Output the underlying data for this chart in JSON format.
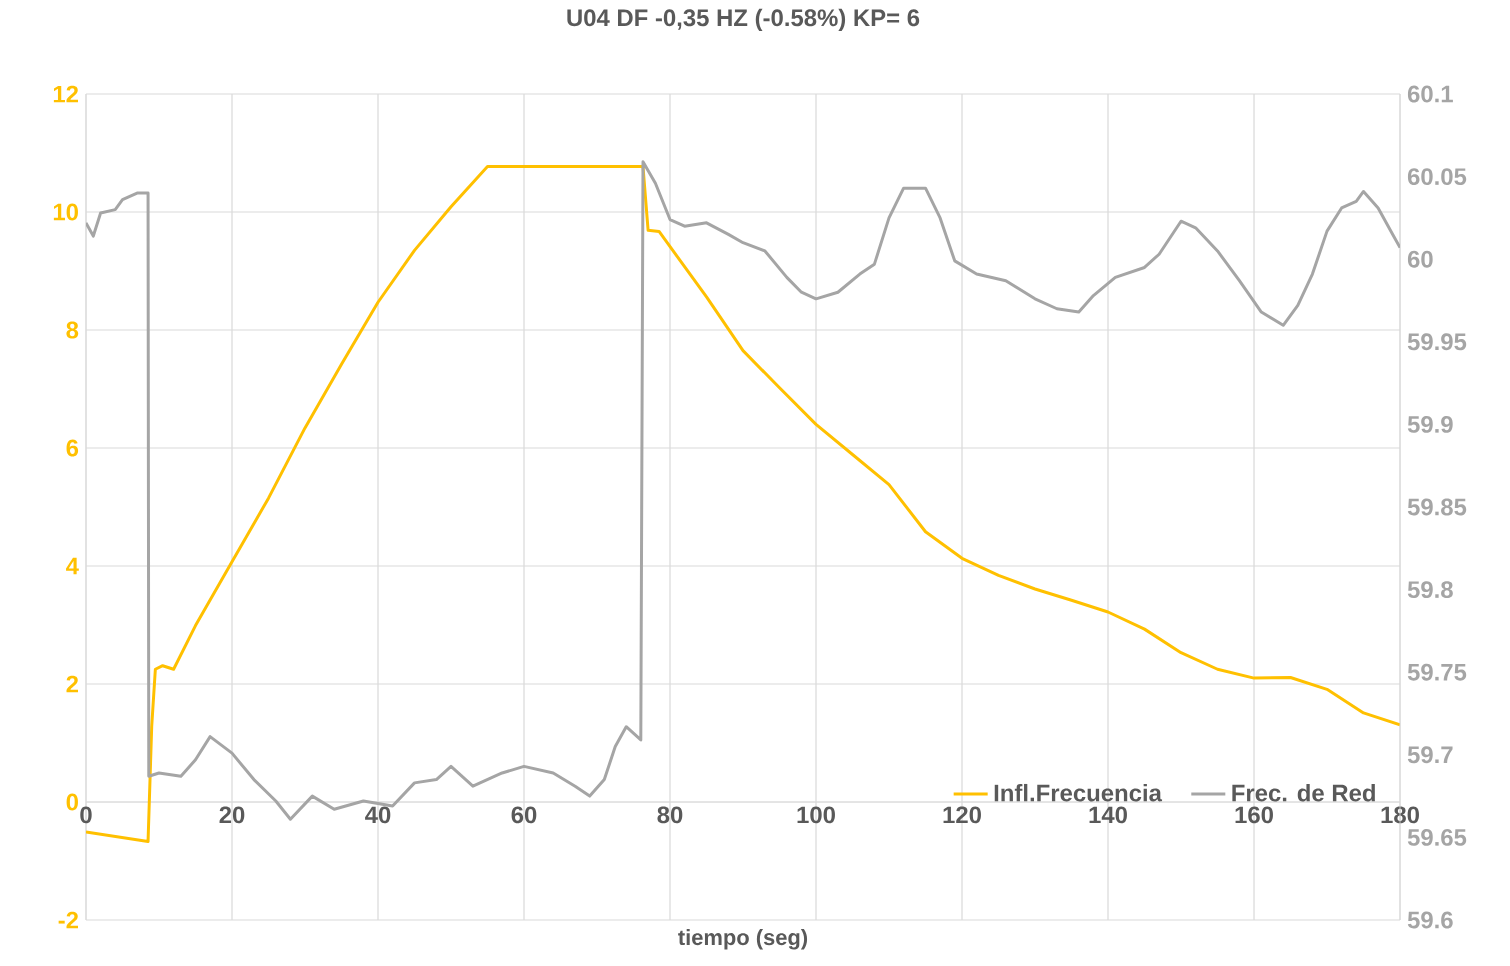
{
  "chart_data": {
    "type": "line",
    "title": "U04 DF -0,35 HZ (-0.58%)  KP= 6",
    "xlabel": "tiempo (seg)",
    "xlim": [
      0,
      180
    ],
    "xticks": [
      0,
      20,
      40,
      60,
      80,
      100,
      120,
      140,
      160,
      180
    ],
    "ylim": [
      -2,
      12
    ],
    "yticks": [
      -2,
      0,
      2,
      4,
      6,
      8,
      10,
      12
    ],
    "y2lim": [
      59.6,
      60.1
    ],
    "y2ticks": [
      59.6,
      59.65,
      59.7,
      59.75,
      59.8,
      59.85,
      59.9,
      59.95,
      60,
      60.05,
      60.1
    ],
    "grid": true,
    "legend": "bottom right",
    "series": [
      {
        "name": "Infl.Frecuencia",
        "color": "#ffc000",
        "x": [
          0,
          8.5,
          9,
          9.5,
          10.5,
          12,
          15,
          20,
          25,
          30,
          35,
          40,
          45,
          50,
          55,
          76.3,
          77,
          78.5,
          85,
          90,
          95,
          100,
          105,
          110,
          115,
          120,
          125,
          130,
          135,
          140,
          145,
          150,
          155,
          160,
          165,
          170,
          175,
          180
        ],
        "values": [
          -0.51,
          -0.67,
          1.28,
          2.25,
          2.31,
          2.25,
          2.99,
          4.07,
          5.15,
          6.34,
          7.42,
          8.47,
          9.35,
          10.09,
          10.77,
          10.77,
          9.69,
          9.67,
          8.56,
          7.65,
          7.02,
          6.4,
          5.89,
          5.38,
          4.58,
          4.13,
          3.84,
          3.61,
          3.42,
          3.22,
          2.93,
          2.53,
          2.25,
          2.1,
          2.11,
          1.91,
          1.51,
          1.31
        ]
      },
      {
        "name": "Frec. de Red",
        "color": "#a5a5a5",
        "axis": "y2",
        "x": [
          0,
          1,
          2,
          4,
          5,
          7,
          8.5,
          8.6,
          10,
          13,
          15,
          17,
          20,
          23,
          26,
          28,
          31,
          34,
          38,
          42,
          45,
          48,
          50,
          53,
          57,
          60,
          64,
          67,
          69,
          71,
          72.5,
          74,
          76,
          76.3,
          78,
          80,
          82,
          85,
          88,
          90,
          93,
          96,
          98,
          100,
          103,
          106,
          108,
          110,
          112,
          115,
          117,
          119,
          122,
          126,
          130,
          133,
          136,
          138,
          141,
          145,
          147,
          150,
          152,
          155,
          158,
          161,
          164,
          166,
          168,
          170,
          172,
          174,
          175,
          177,
          179,
          180
        ],
        "values": [
          60.022,
          60.014,
          60.028,
          60.03,
          60.036,
          60.04,
          60.04,
          59.687,
          59.689,
          59.687,
          59.697,
          59.711,
          59.701,
          59.685,
          59.672,
          59.661,
          59.675,
          59.667,
          59.672,
          59.669,
          59.683,
          59.685,
          59.693,
          59.681,
          59.689,
          59.693,
          59.689,
          59.681,
          59.675,
          59.685,
          59.705,
          59.717,
          59.709,
          60.059,
          60.046,
          60.024,
          60.02,
          60.022,
          60.015,
          60.01,
          60.005,
          59.989,
          59.98,
          59.976,
          59.98,
          59.991,
          59.997,
          60.025,
          60.043,
          60.043,
          60.025,
          59.999,
          59.991,
          59.987,
          59.976,
          59.97,
          59.968,
          59.978,
          59.989,
          59.995,
          60.003,
          60.023,
          60.019,
          60.005,
          59.987,
          59.968,
          59.96,
          59.972,
          59.991,
          60.017,
          60.031,
          60.035,
          60.041,
          60.031,
          60.015,
          60.007
        ]
      }
    ]
  }
}
